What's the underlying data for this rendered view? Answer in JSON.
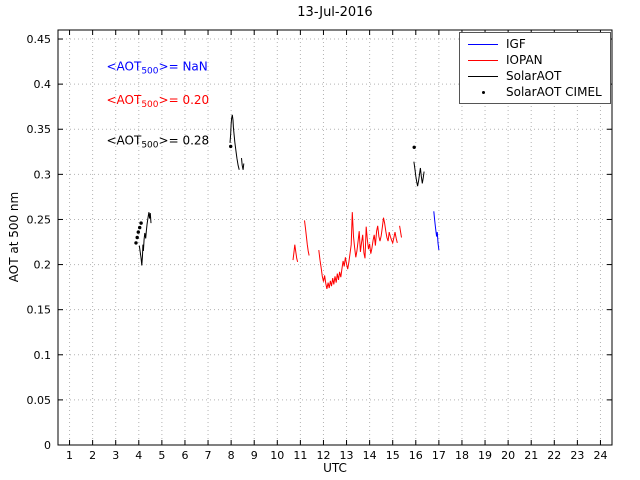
{
  "chart_data": {
    "type": "line",
    "title": "13-Jul-2016",
    "xlabel": "UTC",
    "ylabel": "AOT at 500 nm",
    "xlim": [
      0.5,
      24.5
    ],
    "ylim": [
      0,
      0.46
    ],
    "grid": true,
    "grid_color": "#b3b3b3",
    "axis_color": "#000000",
    "xtick_values": [
      1,
      2,
      3,
      4,
      5,
      6,
      7,
      8,
      9,
      10,
      11,
      12,
      13,
      14,
      15,
      16,
      17,
      18,
      19,
      20,
      21,
      22,
      23,
      24
    ],
    "xtick_labels": [
      "1",
      "2",
      "3",
      "4",
      "5",
      "6",
      "7",
      "8",
      "9",
      "10",
      "11",
      "12",
      "13",
      "14",
      "15",
      "16",
      "17",
      "18",
      "19",
      "20",
      "21",
      "22",
      "23",
      "24"
    ],
    "ytick_values": [
      0,
      0.05,
      0.1,
      0.15,
      0.2,
      0.25,
      0.3,
      0.35,
      0.4,
      0.45
    ],
    "ytick_labels": [
      "0",
      "0.05",
      "0.1",
      "0.15",
      "0.2",
      "0.25",
      "0.3",
      "0.35",
      "0.4",
      "0.45"
    ],
    "legend": {
      "position": "top-right",
      "items": [
        {
          "label": "IGF",
          "color": "#0000ff",
          "marker": "line"
        },
        {
          "label": "IOPAN",
          "color": "#ff0000",
          "marker": "line"
        },
        {
          "label": "SolarAOT",
          "color": "#000000",
          "marker": "line"
        },
        {
          "label": "SolarAOT CIMEL",
          "color": "#000000",
          "marker": "dot"
        }
      ]
    },
    "annotations": [
      {
        "prefix": "<AOT",
        "sub": "500",
        "suffix": ">=  NaN",
        "color": "#0000ff",
        "x": 2.6,
        "y": 0.415
      },
      {
        "prefix": "<AOT",
        "sub": "500",
        "suffix": ">= 0.20",
        "color": "#ff0000",
        "x": 2.6,
        "y": 0.378
      },
      {
        "prefix": "<AOT",
        "sub": "500",
        "suffix": ">= 0.28",
        "color": "#000000",
        "x": 2.6,
        "y": 0.333
      }
    ],
    "series": [
      {
        "name": "IGF",
        "color": "#0000ff",
        "type": "line",
        "segments": [
          [
            [
              16.78,
              0.259
            ],
            [
              16.82,
              0.249
            ],
            [
              16.86,
              0.24
            ],
            [
              16.9,
              0.231
            ],
            [
              16.93,
              0.236
            ],
            [
              16.96,
              0.224
            ],
            [
              17.0,
              0.216
            ]
          ]
        ]
      },
      {
        "name": "IOPAN",
        "color": "#ff0000",
        "type": "line",
        "segments": [
          [
            [
              10.68,
              0.205
            ],
            [
              10.72,
              0.213
            ],
            [
              10.76,
              0.222
            ],
            [
              10.8,
              0.214
            ],
            [
              10.84,
              0.207
            ],
            [
              10.88,
              0.203
            ]
          ],
          [
            [
              11.18,
              0.249
            ],
            [
              11.22,
              0.24
            ],
            [
              11.26,
              0.231
            ],
            [
              11.3,
              0.222
            ],
            [
              11.34,
              0.215
            ],
            [
              11.38,
              0.21
            ]
          ],
          [
            [
              11.8,
              0.216
            ],
            [
              11.85,
              0.205
            ],
            [
              11.9,
              0.196
            ],
            [
              11.95,
              0.187
            ],
            [
              12.0,
              0.181
            ],
            [
              12.05,
              0.188
            ],
            [
              12.1,
              0.179
            ],
            [
              12.15,
              0.173
            ],
            [
              12.2,
              0.18
            ],
            [
              12.25,
              0.174
            ],
            [
              12.3,
              0.182
            ],
            [
              12.35,
              0.176
            ],
            [
              12.4,
              0.185
            ],
            [
              12.45,
              0.178
            ],
            [
              12.5,
              0.187
            ],
            [
              12.55,
              0.18
            ],
            [
              12.6,
              0.19
            ],
            [
              12.65,
              0.183
            ],
            [
              12.7,
              0.192
            ],
            [
              12.75,
              0.186
            ],
            [
              12.8,
              0.195
            ],
            [
              12.85,
              0.204
            ],
            [
              12.9,
              0.198
            ],
            [
              12.95,
              0.208
            ],
            [
              13.0,
              0.201
            ],
            [
              13.05,
              0.195
            ],
            [
              13.1,
              0.203
            ],
            [
              13.15,
              0.212
            ],
            [
              13.2,
              0.222
            ],
            [
              13.25,
              0.258
            ],
            [
              13.3,
              0.231
            ],
            [
              13.35,
              0.219
            ],
            [
              13.4,
              0.208
            ],
            [
              13.45,
              0.215
            ],
            [
              13.5,
              0.226
            ],
            [
              13.55,
              0.237
            ],
            [
              13.6,
              0.214
            ],
            [
              13.65,
              0.224
            ],
            [
              13.7,
              0.233
            ],
            [
              13.75,
              0.213
            ],
            [
              13.8,
              0.207
            ],
            [
              13.85,
              0.242
            ],
            [
              13.9,
              0.228
            ],
            [
              13.95,
              0.217
            ],
            [
              14.0,
              0.223
            ],
            [
              14.05,
              0.212
            ],
            [
              14.1,
              0.218
            ],
            [
              14.15,
              0.227
            ],
            [
              14.2,
              0.233
            ],
            [
              14.25,
              0.221
            ],
            [
              14.3,
              0.237
            ],
            [
              14.35,
              0.243
            ],
            [
              14.4,
              0.231
            ],
            [
              14.45,
              0.226
            ],
            [
              14.5,
              0.232
            ],
            [
              14.55,
              0.241
            ],
            [
              14.6,
              0.252
            ],
            [
              14.65,
              0.246
            ],
            [
              14.7,
              0.237
            ],
            [
              14.75,
              0.23
            ],
            [
              14.8,
              0.226
            ],
            [
              14.85,
              0.236
            ],
            [
              14.9,
              0.231
            ],
            [
              14.95,
              0.227
            ],
            [
              15.0,
              0.224
            ],
            [
              15.05,
              0.23
            ],
            [
              15.1,
              0.236
            ],
            [
              15.15,
              0.229
            ],
            [
              15.2,
              0.224
            ]
          ],
          [
            [
              15.3,
              0.243
            ],
            [
              15.34,
              0.236
            ],
            [
              15.38,
              0.23
            ]
          ]
        ]
      },
      {
        "name": "SolarAOT",
        "color": "#000000",
        "type": "line",
        "segments": [
          [
            [
              4.02,
              0.221
            ],
            [
              4.06,
              0.214
            ],
            [
              4.1,
              0.207
            ],
            [
              4.13,
              0.199
            ],
            [
              4.16,
              0.21
            ],
            [
              4.18,
              0.222
            ],
            [
              4.2,
              0.215
            ],
            [
              4.23,
              0.228
            ],
            [
              4.26,
              0.235
            ],
            [
              4.3,
              0.229
            ],
            [
              4.33,
              0.238
            ],
            [
              4.36,
              0.245
            ],
            [
              4.4,
              0.252
            ],
            [
              4.44,
              0.258
            ],
            [
              4.47,
              0.251
            ],
            [
              4.5,
              0.257
            ],
            [
              4.53,
              0.246
            ]
          ],
          [
            [
              7.95,
              0.335
            ],
            [
              7.98,
              0.345
            ],
            [
              8.0,
              0.355
            ],
            [
              8.02,
              0.362
            ],
            [
              8.05,
              0.366
            ],
            [
              8.08,
              0.36
            ],
            [
              8.1,
              0.352
            ],
            [
              8.13,
              0.344
            ],
            [
              8.16,
              0.336
            ],
            [
              8.2,
              0.328
            ],
            [
              8.25,
              0.318
            ],
            [
              8.3,
              0.31
            ],
            [
              8.35,
              0.305
            ]
          ],
          [
            [
              8.45,
              0.318
            ],
            [
              8.48,
              0.31
            ],
            [
              8.52,
              0.305
            ],
            [
              8.55,
              0.312
            ]
          ],
          [
            [
              15.92,
              0.314
            ],
            [
              15.96,
              0.306
            ],
            [
              16.0,
              0.298
            ],
            [
              16.04,
              0.292
            ],
            [
              16.08,
              0.287
            ],
            [
              16.12,
              0.293
            ],
            [
              16.16,
              0.3
            ],
            [
              16.2,
              0.307
            ],
            [
              16.24,
              0.298
            ],
            [
              16.28,
              0.29
            ],
            [
              16.32,
              0.296
            ],
            [
              16.36,
              0.303
            ]
          ]
        ]
      },
      {
        "name": "SolarAOT CIMEL",
        "color": "#000000",
        "type": "scatter",
        "points": [
          [
            3.88,
            0.224
          ],
          [
            3.93,
            0.23
          ],
          [
            3.98,
            0.236
          ],
          [
            4.04,
            0.241
          ],
          [
            4.1,
            0.246
          ],
          [
            7.98,
            0.331
          ],
          [
            15.93,
            0.33
          ]
        ]
      }
    ]
  }
}
